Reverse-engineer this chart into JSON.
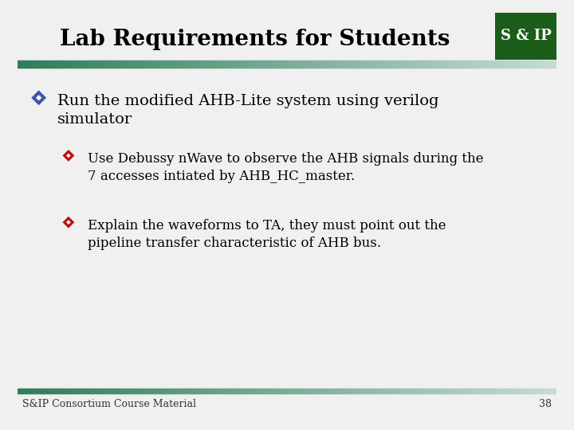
{
  "title": "Lab Requirements for Students",
  "title_fontsize": 20,
  "title_color": "#000000",
  "background_color": "#ffffff",
  "slide_bg": "#f0f0f0",
  "logo_text": "S & IP",
  "logo_bg": "#1a5e1a",
  "logo_text_color": "#ffffff",
  "footer_text": "S&IP Consortium Course Material",
  "footer_page": "38",
  "footer_fontsize": 9,
  "bar_color_left": "#2e7d5a",
  "bar_color_right": "#c5ddd0",
  "bullet1_color": "#4455aa",
  "bullet2_color": "#bb1111",
  "level1_text": "Run the modified AHB-Lite system using verilog\nsimulator",
  "level2_items": [
    "Use Debussy nWave to observe the AHB signals during the\n7 accesses intiated by AHB_HC_master.",
    "Explain the waveforms to TA, they must point out the\npipeline transfer characteristic of AHB bus."
  ],
  "main_fontsize": 14,
  "sub_fontsize": 12
}
